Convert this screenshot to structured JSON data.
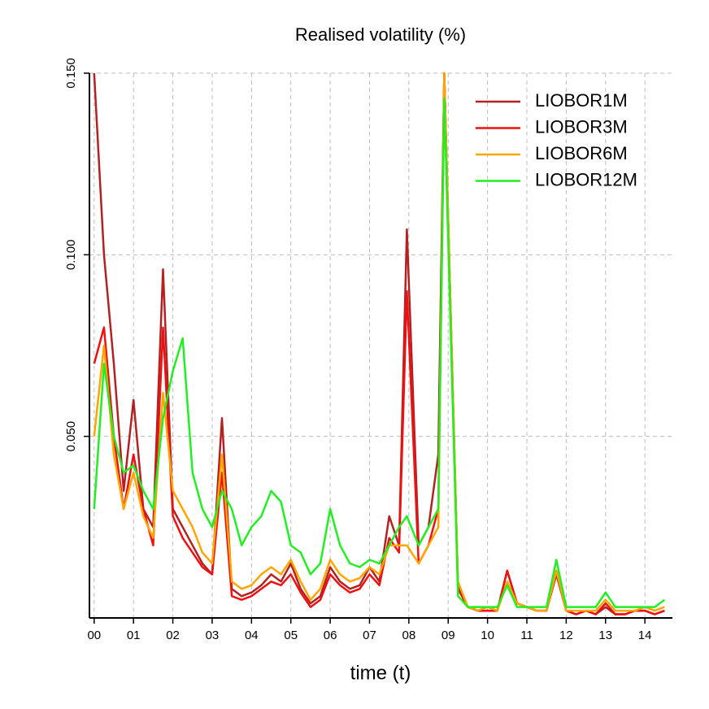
{
  "chart_data": {
    "type": "line",
    "title": "Realised volatility (%)",
    "x_label": "time (t)",
    "x": [
      0,
      0.25,
      0.5,
      0.75,
      1.0,
      1.25,
      1.5,
      1.75,
      2.0,
      2.25,
      2.5,
      2.75,
      3.0,
      3.25,
      3.5,
      3.75,
      4.0,
      4.25,
      4.5,
      4.75,
      5.0,
      5.25,
      5.5,
      5.75,
      6.0,
      6.25,
      6.5,
      6.75,
      7.0,
      7.25,
      7.5,
      7.75,
      7.95,
      8.25,
      8.5,
      8.75,
      8.9,
      9.25,
      9.5,
      9.75,
      10.0,
      10.25,
      10.5,
      10.75,
      11.0,
      11.25,
      11.5,
      11.75,
      12.0,
      12.25,
      12.5,
      12.75,
      13.0,
      13.25,
      13.5,
      13.75,
      14.0,
      14.25,
      14.5
    ],
    "series": [
      {
        "name": "LIOBOR1M",
        "color": "#b22222",
        "values": [
          0.15,
          0.1,
          0.07,
          0.035,
          0.06,
          0.03,
          0.025,
          0.096,
          0.03,
          0.025,
          0.02,
          0.015,
          0.012,
          0.055,
          0.008,
          0.006,
          0.007,
          0.009,
          0.012,
          0.01,
          0.015,
          0.008,
          0.004,
          0.006,
          0.014,
          0.01,
          0.008,
          0.009,
          0.014,
          0.01,
          0.028,
          0.02,
          0.107,
          0.02,
          0.025,
          0.045,
          0.15,
          0.008,
          0.003,
          0.002,
          0.002,
          0.002,
          0.013,
          0.004,
          0.003,
          0.002,
          0.002,
          0.012,
          0.002,
          0.001,
          0.002,
          0.001,
          0.003,
          0.001,
          0.001,
          0.002,
          0.002,
          0.001,
          0.002
        ]
      },
      {
        "name": "LIOBOR3M",
        "color": "#ee1111",
        "values": [
          0.07,
          0.08,
          0.05,
          0.03,
          0.045,
          0.03,
          0.02,
          0.08,
          0.028,
          0.022,
          0.018,
          0.014,
          0.012,
          0.04,
          0.006,
          0.005,
          0.006,
          0.008,
          0.01,
          0.009,
          0.012,
          0.007,
          0.003,
          0.005,
          0.012,
          0.009,
          0.007,
          0.008,
          0.012,
          0.009,
          0.022,
          0.018,
          0.09,
          0.015,
          0.02,
          0.03,
          0.15,
          0.009,
          0.003,
          0.002,
          0.002,
          0.002,
          0.013,
          0.004,
          0.003,
          0.002,
          0.002,
          0.013,
          0.002,
          0.001,
          0.002,
          0.001,
          0.004,
          0.001,
          0.001,
          0.002,
          0.002,
          0.001,
          0.002
        ]
      },
      {
        "name": "LIOBOR6M",
        "color": "#ffa500",
        "values": [
          0.05,
          0.075,
          0.045,
          0.03,
          0.04,
          0.028,
          0.022,
          0.062,
          0.035,
          0.03,
          0.025,
          0.018,
          0.015,
          0.045,
          0.01,
          0.008,
          0.009,
          0.012,
          0.014,
          0.012,
          0.016,
          0.01,
          0.005,
          0.008,
          0.016,
          0.012,
          0.01,
          0.011,
          0.014,
          0.012,
          0.02,
          0.02,
          0.02,
          0.015,
          0.02,
          0.025,
          0.15,
          0.01,
          0.003,
          0.002,
          0.003,
          0.002,
          0.01,
          0.004,
          0.003,
          0.002,
          0.002,
          0.013,
          0.002,
          0.002,
          0.002,
          0.002,
          0.005,
          0.002,
          0.002,
          0.002,
          0.003,
          0.002,
          0.003
        ]
      },
      {
        "name": "LIOBOR12M",
        "color": "#22ee22",
        "values": [
          0.03,
          0.07,
          0.05,
          0.04,
          0.042,
          0.035,
          0.03,
          0.055,
          0.068,
          0.077,
          0.04,
          0.03,
          0.025,
          0.035,
          0.03,
          0.02,
          0.025,
          0.028,
          0.035,
          0.032,
          0.02,
          0.018,
          0.012,
          0.015,
          0.03,
          0.02,
          0.015,
          0.014,
          0.016,
          0.015,
          0.02,
          0.025,
          0.028,
          0.02,
          0.025,
          0.03,
          0.143,
          0.006,
          0.003,
          0.003,
          0.003,
          0.003,
          0.009,
          0.003,
          0.003,
          0.003,
          0.003,
          0.016,
          0.003,
          0.003,
          0.003,
          0.003,
          0.007,
          0.003,
          0.003,
          0.003,
          0.003,
          0.003,
          0.005
        ]
      }
    ],
    "xlim": [
      -0.12,
      14.7
    ],
    "ylim": [
      0,
      0.15
    ],
    "xticks": [
      {
        "value": 0,
        "label": "00"
      },
      {
        "value": 1,
        "label": "01"
      },
      {
        "value": 2,
        "label": "02"
      },
      {
        "value": 3,
        "label": "03"
      },
      {
        "value": 4,
        "label": "04"
      },
      {
        "value": 5,
        "label": "05"
      },
      {
        "value": 6,
        "label": "06"
      },
      {
        "value": 7,
        "label": "07"
      },
      {
        "value": 8,
        "label": "08"
      },
      {
        "value": 9,
        "label": "09"
      },
      10,
      11,
      12,
      13,
      14
    ],
    "yticks": [
      {
        "value": 0.05,
        "label": "0.050"
      },
      {
        "value": 0.1,
        "label": "0.100"
      },
      {
        "value": 0.15,
        "label": "0.150"
      }
    ],
    "grid": true,
    "legend": "top-right"
  }
}
